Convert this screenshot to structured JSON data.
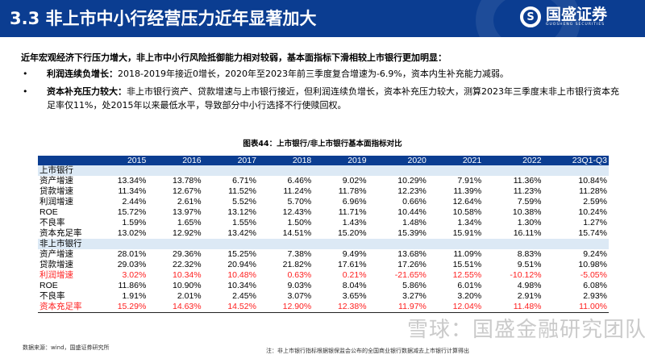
{
  "header": {
    "title": "3.3 非上市中小行经营压力近年显著加大",
    "logo_cn": "国盛证券",
    "logo_en": "GUOSHENG SECURITIES"
  },
  "intro": "近年宏观经济下行压力增大，非上市中小行风险抵御能力相对较弱，基本面指标下滑相较上市银行更加明显：",
  "bullets": [
    {
      "bold": "利润连续负增长：",
      "text": "2018-2019年接近0增长，2020年至2023年前三季度复合增速为-6.9%，资本内生补充能力减弱。"
    },
    {
      "bold": "资本补充压力较大：",
      "text": "非上市银行资产、贷款增速与上市银行接近，但利润连续负增长，资本补充压力较大，测算2023年三季度末非上市银行资本充足率仅11%，处2015年以来最低水平，导致部分中小行选择不行使赎回权。"
    }
  ],
  "figure_title": "图表44：上市银行/非上市银行基本面指标对比",
  "table": {
    "columns": [
      "",
      "2015",
      "2016",
      "2017",
      "2018",
      "2019",
      "2020",
      "2021",
      "2022",
      "23Q1-Q3"
    ],
    "sections": [
      {
        "name": "上市银行",
        "rows": [
          {
            "label": "资产增速",
            "values": [
              "13.34%",
              "13.78%",
              "6.71%",
              "6.46%",
              "9.02%",
              "10.29%",
              "7.91%",
              "11.36%",
              "10.84%"
            ]
          },
          {
            "label": "贷款增速",
            "values": [
              "11.34%",
              "12.67%",
              "11.52%",
              "11.24%",
              "11.78%",
              "12.23%",
              "11.39%",
              "11.23%",
              "11.28%"
            ]
          },
          {
            "label": "利润增速",
            "values": [
              "2.44%",
              "2.61%",
              "5.52%",
              "5.70%",
              "6.96%",
              "0.66%",
              "12.64%",
              "7.59%",
              "2.59%"
            ]
          },
          {
            "label": "ROE",
            "values": [
              "15.72%",
              "13.97%",
              "13.12%",
              "12.43%",
              "11.71%",
              "10.44%",
              "10.58%",
              "10.38%",
              "10.24%"
            ]
          },
          {
            "label": "不良率",
            "values": [
              "1.59%",
              "1.65%",
              "1.55%",
              "1.50%",
              "1.43%",
              "1.48%",
              "1.34%",
              "1.30%",
              "1.27%"
            ]
          },
          {
            "label": "资本充足率",
            "values": [
              "13.02%",
              "12.92%",
              "13.42%",
              "14.51%",
              "15.20%",
              "15.39%",
              "15.91%",
              "16.11%",
              "15.74%"
            ]
          }
        ]
      },
      {
        "name": "非上市银行",
        "rows": [
          {
            "label": "资产增速",
            "values": [
              "28.01%",
              "29.36%",
              "15.25%",
              "7.38%",
              "9.49%",
              "13.68%",
              "11.09%",
              "8.83%",
              "9.24%"
            ]
          },
          {
            "label": "贷款增速",
            "values": [
              "29.03%",
              "22.32%",
              "20.94%",
              "21.82%",
              "17.61%",
              "17.26%",
              "15.51%",
              "9.51%",
              "10.98%"
            ]
          },
          {
            "label": "利润增速",
            "highlight": true,
            "values": [
              "3.02%",
              "10.34%",
              "10.48%",
              "0.63%",
              "0.21%",
              "-21.65%",
              "12.55%",
              "-10.12%",
              "-5.05%"
            ]
          },
          {
            "label": "ROE",
            "values": [
              "11.86%",
              "10.90%",
              "10.34%",
              "9.03%",
              "8.04%",
              "5.86%",
              "6.01%",
              "4.98%",
              "6.08%"
            ]
          },
          {
            "label": "不良率",
            "values": [
              "1.91%",
              "2.01%",
              "2.45%",
              "3.07%",
              "3.65%",
              "3.27%",
              "3.20%",
              "2.91%",
              "2.93%"
            ]
          },
          {
            "label": "资本充足率",
            "highlight": true,
            "values": [
              "15.29%",
              "14.63%",
              "14.52%",
              "12.90%",
              "12.38%",
              "11.97%",
              "12.04%",
              "11.48%",
              "11.00%"
            ]
          }
        ]
      }
    ]
  },
  "source": "数据来源：wind，国盛证券研究所",
  "note": "注：非上市银行指标根据银保监会公布的全国商业银行数据减去上市银行计算得出",
  "watermark": "雪球：国盛金融研究团队",
  "colors": {
    "brand": "#0b3d91",
    "highlight": "#ff2020",
    "section_bg": "#dce9f5"
  }
}
